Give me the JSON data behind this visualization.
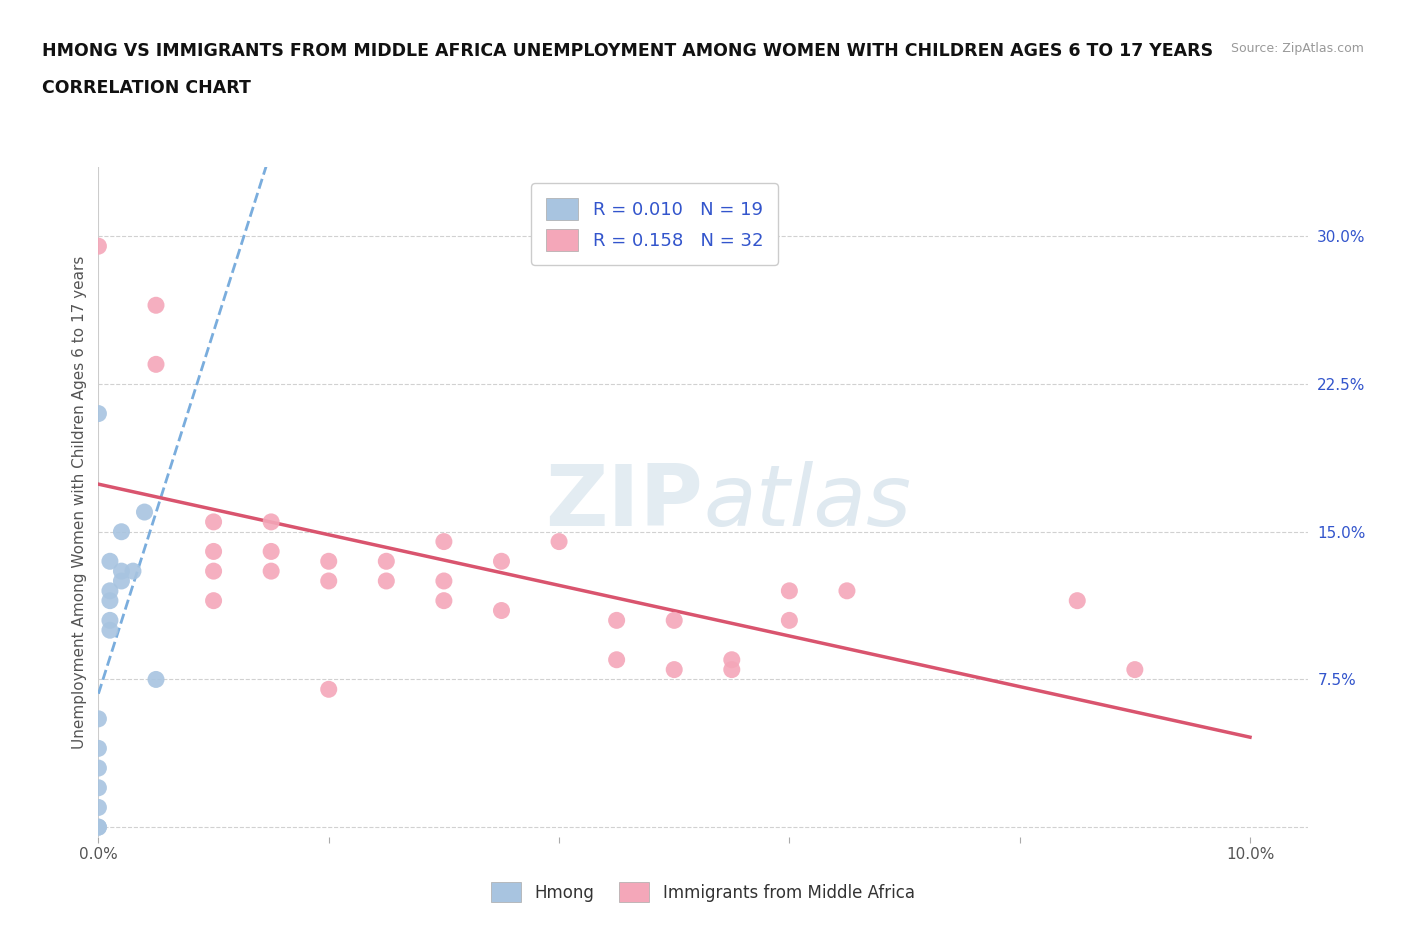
{
  "title_line1": "HMONG VS IMMIGRANTS FROM MIDDLE AFRICA UNEMPLOYMENT AMONG WOMEN WITH CHILDREN AGES 6 TO 17 YEARS",
  "title_line2": "CORRELATION CHART",
  "source_text": "Source: ZipAtlas.com",
  "ylabel": "Unemployment Among Women with Children Ages 6 to 17 years",
  "xlim": [
    0.0,
    0.105
  ],
  "ylim": [
    -0.005,
    0.335
  ],
  "xtick_positions": [
    0.0,
    0.02,
    0.04,
    0.06,
    0.08,
    0.1
  ],
  "xtick_labels": [
    "0.0%",
    "",
    "",
    "",
    "",
    "10.0%"
  ],
  "ytick_right": [
    0.0,
    0.075,
    0.15,
    0.225,
    0.3
  ],
  "ytick_right_labels": [
    "",
    "7.5%",
    "15.0%",
    "22.5%",
    "30.0%"
  ],
  "watermark_zip": "ZIP",
  "watermark_atlas": "atlas",
  "hmong_R": 0.01,
  "hmong_N": 19,
  "africa_R": 0.158,
  "africa_N": 32,
  "hmong_color": "#a8c4e0",
  "africa_color": "#f4a7b9",
  "hmong_line_color": "#7aaddd",
  "africa_line_color": "#d9546e",
  "legend_text_color": "#3355cc",
  "hmong_x": [
    0.0,
    0.0,
    0.0,
    0.0,
    0.0,
    0.0,
    0.0,
    0.0,
    0.001,
    0.001,
    0.001,
    0.001,
    0.001,
    0.002,
    0.002,
    0.002,
    0.003,
    0.004,
    0.005
  ],
  "hmong_y": [
    0.0,
    0.0,
    0.01,
    0.02,
    0.03,
    0.04,
    0.055,
    0.21,
    0.1,
    0.105,
    0.115,
    0.12,
    0.135,
    0.125,
    0.13,
    0.15,
    0.13,
    0.16,
    0.075
  ],
  "africa_x": [
    0.0,
    0.005,
    0.005,
    0.01,
    0.01,
    0.01,
    0.015,
    0.015,
    0.015,
    0.02,
    0.02,
    0.02,
    0.025,
    0.025,
    0.03,
    0.03,
    0.03,
    0.035,
    0.035,
    0.04,
    0.045,
    0.045,
    0.05,
    0.05,
    0.055,
    0.055,
    0.06,
    0.06,
    0.065,
    0.085,
    0.09,
    0.01
  ],
  "africa_y": [
    0.295,
    0.235,
    0.265,
    0.13,
    0.14,
    0.155,
    0.13,
    0.14,
    0.155,
    0.135,
    0.125,
    0.07,
    0.135,
    0.125,
    0.145,
    0.125,
    0.115,
    0.11,
    0.135,
    0.145,
    0.105,
    0.085,
    0.105,
    0.08,
    0.085,
    0.08,
    0.12,
    0.105,
    0.12,
    0.115,
    0.08,
    0.115
  ],
  "background_color": "#ffffff",
  "grid_color": "#cccccc",
  "plot_background": "#ffffff"
}
